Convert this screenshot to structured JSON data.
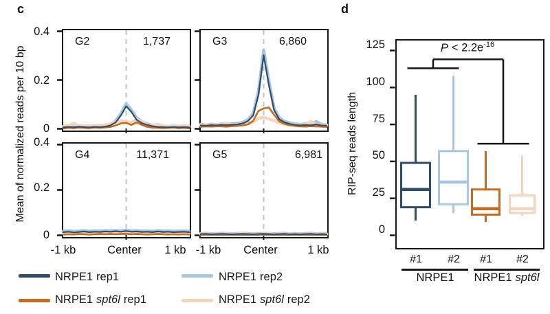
{
  "figure": {
    "panel_c": {
      "label": "c",
      "ylabel": "Mean of normalized reads per 10 bp",
      "yticks": [
        "0.4",
        "0.2",
        "0"
      ],
      "xticks": [
        "-1 kb",
        "Center",
        "1 kb"
      ],
      "legend": [
        {
          "name": "NRPE1",
          "variant": "",
          "rep": "rep1",
          "color": "#2d4d6e"
        },
        {
          "name": "NRPE1",
          "variant": "",
          "rep": "rep2",
          "color": "#a8c7e5"
        },
        {
          "name": "NRPE1",
          "variant": "spt6l",
          "rep": "rep1",
          "color": "#c7691f"
        },
        {
          "name": "NRPE1",
          "variant": "spt6l",
          "rep": "rep2",
          "color": "#f5d6ba"
        }
      ]
    },
    "panel_d": {
      "label": "d",
      "ylabel": "RIP-seq reads length",
      "p": {
        "it": "P",
        "mid": "< 2.2e",
        "sup": "-16"
      },
      "group1": {
        "name": "NRPE1",
        "variant": ""
      },
      "group2": {
        "name": "NRPE1",
        "variant": "spt6l"
      }
    },
    "colors": {
      "nrpe1_rep1": "#2d4d6e",
      "nrpe1_rep2": "#a8c7e5",
      "nrpe1_spt6l_rep1": "#c7691f",
      "nrpe1_spt6l_rep2": "#f5d6ba",
      "frame": "#161616",
      "dashed_center_line": "#c7c7c7"
    }
  },
  "chart_data": [
    {
      "type": "line",
      "title": "Metagene profiles of RIP-seq signal",
      "ylabel": "Mean of normalized reads per 10 bp",
      "ylim": [
        0,
        0.4
      ],
      "yticks": [
        0,
        0.2,
        0.4
      ],
      "x_range_bp": [
        -1000,
        1000
      ],
      "xticks": [
        "-1 kb",
        "Center",
        "1 kb"
      ],
      "panels": [
        {
          "group": "G2",
          "n": "1,737",
          "series": [
            {
              "name": "NRPE1 rep1",
              "color": "#2d4d6e",
              "values": [
                0.01,
                0.012,
                0.01,
                0.013,
                0.011,
                0.01,
                0.012,
                0.011,
                0.013,
                0.018,
                0.03,
                0.058,
                0.095,
                0.072,
                0.04,
                0.027,
                0.02,
                0.015,
                0.012,
                0.011,
                0.01,
                0.012,
                0.01,
                0.011,
                0.01
              ]
            },
            {
              "name": "NRPE1 rep2",
              "color": "#a8c7e5",
              "values": [
                0.013,
                0.015,
                0.012,
                0.016,
                0.014,
                0.013,
                0.015,
                0.014,
                0.016,
                0.022,
                0.036,
                0.066,
                0.105,
                0.08,
                0.048,
                0.033,
                0.024,
                0.018,
                0.015,
                0.013,
                0.012,
                0.014,
                0.012,
                0.013,
                0.012
              ]
            },
            {
              "name": "NRPE1 spt6l rep1",
              "color": "#c7691f",
              "values": [
                0.006,
                0.008,
                0.007,
                0.009,
                0.008,
                0.007,
                0.009,
                0.008,
                0.01,
                0.012,
                0.018,
                0.026,
                0.028,
                0.02,
                0.03,
                0.02,
                0.012,
                0.009,
                0.008,
                0.007,
                0.008,
                0.009,
                0.007,
                0.008,
                0.006
              ]
            },
            {
              "name": "NRPE1 spt6l rep2",
              "color": "#f5d6ba",
              "values": [
                0.014,
                0.018,
                0.026,
                0.016,
                0.015,
                0.017,
                0.016,
                0.018,
                0.02,
                0.024,
                0.031,
                0.036,
                0.032,
                0.03,
                0.041,
                0.033,
                0.02,
                0.016,
                0.023,
                0.015,
                0.014,
                0.016,
                0.015,
                0.017,
                0.014
              ]
            }
          ]
        },
        {
          "group": "G3",
          "n": "6,860",
          "series": [
            {
              "name": "NRPE1 rep1",
              "color": "#2d4d6e",
              "values": [
                0.018,
                0.017,
                0.019,
                0.018,
                0.02,
                0.019,
                0.021,
                0.022,
                0.026,
                0.035,
                0.058,
                0.14,
                0.3,
                0.18,
                0.078,
                0.042,
                0.03,
                0.024,
                0.02,
                0.018,
                0.02,
                0.018,
                0.022,
                0.018,
                0.017
              ]
            },
            {
              "name": "NRPE1 rep2",
              "color": "#a8c7e5",
              "values": [
                0.022,
                0.02,
                0.023,
                0.021,
                0.024,
                0.022,
                0.025,
                0.026,
                0.03,
                0.041,
                0.066,
                0.152,
                0.32,
                0.196,
                0.086,
                0.048,
                0.034,
                0.028,
                0.024,
                0.022,
                0.024,
                0.021,
                0.034,
                0.022,
                0.02
              ]
            },
            {
              "name": "NRPE1 spt6l rep1",
              "color": "#c7691f",
              "values": [
                0.012,
                0.014,
                0.013,
                0.015,
                0.014,
                0.013,
                0.015,
                0.016,
                0.018,
                0.022,
                0.036,
                0.076,
                0.086,
                0.09,
                0.06,
                0.034,
                0.024,
                0.018,
                0.016,
                0.014,
                0.013,
                0.015,
                0.014,
                0.013,
                0.012
              ]
            },
            {
              "name": "NRPE1 spt6l rep2",
              "color": "#f5d6ba",
              "values": [
                0.018,
                0.02,
                0.019,
                0.021,
                0.02,
                0.026,
                0.02,
                0.021,
                0.022,
                0.025,
                0.032,
                0.046,
                0.05,
                0.044,
                0.037,
                0.029,
                0.024,
                0.021,
                0.02,
                0.019,
                0.02,
                0.034,
                0.02,
                0.019,
                0.018
              ]
            }
          ]
        },
        {
          "group": "G4",
          "n": "11,371",
          "series": [
            {
              "name": "NRPE1 rep1",
              "color": "#2d4d6e",
              "values": [
                0.018,
                0.02,
                0.017,
                0.019,
                0.021,
                0.018,
                0.02,
                0.019,
                0.021,
                0.02,
                0.022,
                0.02,
                0.023,
                0.02,
                0.021,
                0.019,
                0.02,
                0.018,
                0.021,
                0.019,
                0.02,
                0.018,
                0.019,
                0.02,
                0.018
              ]
            },
            {
              "name": "NRPE1 rep2",
              "color": "#a8c7e5",
              "values": [
                0.022,
                0.024,
                0.021,
                0.023,
                0.025,
                0.022,
                0.024,
                0.023,
                0.025,
                0.024,
                0.026,
                0.024,
                0.027,
                0.024,
                0.025,
                0.023,
                0.024,
                0.022,
                0.025,
                0.023,
                0.024,
                0.022,
                0.023,
                0.024,
                0.022
              ]
            },
            {
              "name": "NRPE1 spt6l rep1",
              "color": "#c7691f",
              "values": [
                0.008,
                0.009,
                0.008,
                0.01,
                0.009,
                0.008,
                0.009,
                0.01,
                0.009,
                0.01,
                0.009,
                0.01,
                0.011,
                0.009,
                0.01,
                0.009,
                0.008,
                0.009,
                0.01,
                0.009,
                0.008,
                0.009,
                0.008,
                0.009,
                0.008
              ]
            },
            {
              "name": "NRPE1 spt6l rep2",
              "color": "#f5d6ba",
              "values": [
                0.012,
                0.013,
                0.012,
                0.014,
                0.013,
                0.012,
                0.013,
                0.014,
                0.013,
                0.014,
                0.013,
                0.014,
                0.015,
                0.013,
                0.014,
                0.013,
                0.012,
                0.013,
                0.014,
                0.013,
                0.012,
                0.013,
                0.012,
                0.013,
                0.012
              ]
            }
          ]
        },
        {
          "group": "G5",
          "n": "6,981",
          "series": [
            {
              "name": "NRPE1 rep1",
              "color": "#2d4d6e",
              "values": [
                0.01,
                0.011,
                0.009,
                0.01,
                0.011,
                0.01,
                0.009,
                0.01,
                0.011,
                0.01,
                0.009,
                0.01,
                0.011,
                0.01,
                0.009,
                0.01,
                0.011,
                0.009,
                0.01,
                0.009,
                0.01,
                0.011,
                0.009,
                0.01,
                0.009
              ]
            },
            {
              "name": "NRPE1 rep2",
              "color": "#a8c7e5",
              "values": [
                0.012,
                0.013,
                0.011,
                0.012,
                0.013,
                0.012,
                0.011,
                0.012,
                0.013,
                0.012,
                0.011,
                0.012,
                0.013,
                0.012,
                0.011,
                0.012,
                0.013,
                0.011,
                0.012,
                0.011,
                0.012,
                0.013,
                0.011,
                0.012,
                0.011
              ]
            },
            {
              "name": "NRPE1 spt6l rep1",
              "color": "#c7691f",
              "values": [
                0.006,
                0.007,
                0.006,
                0.007,
                0.006,
                0.007,
                0.006,
                0.007,
                0.006,
                0.007,
                0.006,
                0.007,
                0.008,
                0.006,
                0.007,
                0.006,
                0.007,
                0.006,
                0.007,
                0.006,
                0.007,
                0.006,
                0.007,
                0.006,
                0.006
              ]
            },
            {
              "name": "NRPE1 spt6l rep2",
              "color": "#f5d6ba",
              "values": [
                0.009,
                0.01,
                0.009,
                0.01,
                0.009,
                0.01,
                0.009,
                0.01,
                0.011,
                0.009,
                0.01,
                0.009,
                0.01,
                0.011,
                0.009,
                0.01,
                0.009,
                0.01,
                0.009,
                0.01,
                0.009,
                0.01,
                0.009,
                0.01,
                0.009
              ]
            }
          ]
        }
      ]
    },
    {
      "type": "box",
      "ylabel": "RIP-seq reads length",
      "ylim": [
        -9,
        133
      ],
      "yticks": [
        0,
        25,
        50,
        75,
        100,
        125
      ],
      "annotation": "P < 2.2e-16",
      "groups": [
        {
          "tick": "#1",
          "group": "NRPE1",
          "color": "#2d4d6e",
          "whisker_low": 10,
          "q1": 19,
          "median": 31,
          "q3": 49,
          "whisker_high": 95
        },
        {
          "tick": "#2",
          "group": "NRPE1",
          "color": "#a8c7e5",
          "whisker_low": 15,
          "q1": 21,
          "median": 36,
          "q3": 57,
          "whisker_high": 108
        },
        {
          "tick": "#1",
          "group": "NRPE1 spt6l",
          "color": "#c7691f",
          "whisker_low": 9,
          "q1": 14,
          "median": 18,
          "q3": 31,
          "whisker_high": 57
        },
        {
          "tick": "#2",
          "group": "NRPE1 spt6l",
          "color": "#f5d6ba",
          "whisker_low": 13,
          "q1": 15,
          "median": 18,
          "q3": 27,
          "whisker_high": 54
        }
      ],
      "bracket": {
        "sub1_y": 113,
        "sub2_y": 62,
        "top_y": 119
      }
    }
  ]
}
